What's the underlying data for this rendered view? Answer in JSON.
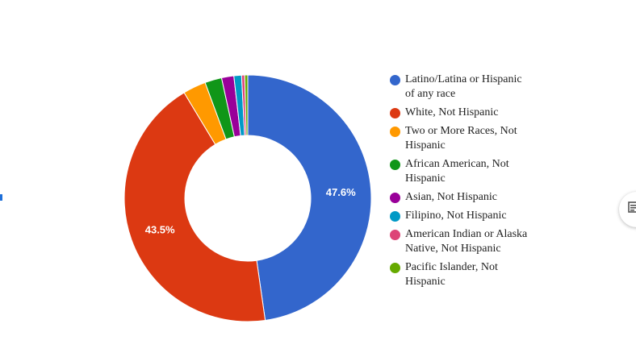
{
  "chart_data": {
    "type": "pie",
    "title": "",
    "slices": [
      {
        "label": "Latino/Latina or Hispanic of any race",
        "value": 47.6,
        "color": "#3366cc",
        "data_label": "47.6%"
      },
      {
        "label": "White, Not Hispanic",
        "value": 43.5,
        "color": "#dc3912",
        "data_label": "43.5%"
      },
      {
        "label": "Two or More Races, Not Hispanic",
        "value": 3.0,
        "color": "#ff9900",
        "data_label": ""
      },
      {
        "label": "African American, Not Hispanic",
        "value": 2.2,
        "color": "#109618",
        "data_label": ""
      },
      {
        "label": "Asian, Not Hispanic",
        "value": 1.6,
        "color": "#990099",
        "data_label": ""
      },
      {
        "label": "Filipino, Not Hispanic",
        "value": 1.0,
        "color": "#0099c6",
        "data_label": ""
      },
      {
        "label": "American Indian or Alaska Native, Not Hispanic",
        "value": 0.4,
        "color": "#dd4477",
        "data_label": ""
      },
      {
        "label": "Pacific Islander, Not Hispanic",
        "value": 0.4,
        "color": "#66aa00",
        "data_label": ""
      }
    ],
    "hole": "donut",
    "legend_position": "right"
  },
  "ui": {
    "side_button_icon": "document-icon"
  }
}
